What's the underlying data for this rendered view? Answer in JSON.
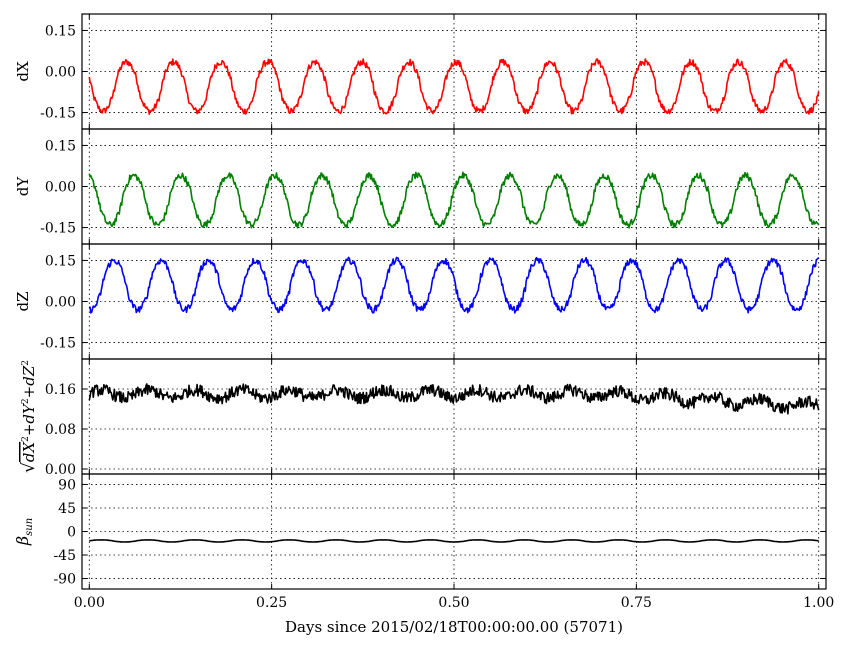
{
  "chart_data": {
    "type": "line",
    "xlabel": "Days since 2015/02/18T00:00:00.00 (57071)",
    "xlim": [
      -0.01,
      1.01
    ],
    "xticks": [
      "0.00",
      "0.25",
      "0.50",
      "0.75",
      "1.00"
    ],
    "panels": [
      {
        "id": "dX",
        "ylabel_parts": [
          "dX"
        ],
        "color": "#ff0000",
        "ylim": [
          -0.21,
          0.21
        ],
        "yticks": [
          "0.15",
          "0.00",
          "-0.15"
        ],
        "ytick_values": [
          0.15,
          0.0,
          -0.15
        ],
        "model": {
          "offset": -0.055,
          "amplitude": 0.09,
          "period_days": 0.0645,
          "phase": 0.035,
          "noise": 0.012
        }
      },
      {
        "id": "dY",
        "ylabel_parts": [
          "dY"
        ],
        "color": "#008000",
        "ylim": [
          -0.21,
          0.21
        ],
        "yticks": [
          "0.15",
          "0.00",
          "-0.15"
        ],
        "ytick_values": [
          0.15,
          0.0,
          -0.15
        ],
        "model": {
          "offset": -0.05,
          "amplitude": 0.09,
          "period_days": 0.0645,
          "phase": 0.045,
          "noise": 0.012
        }
      },
      {
        "id": "dZ",
        "ylabel_parts": [
          "dZ"
        ],
        "color": "#0000ff",
        "ylim": [
          -0.21,
          0.21
        ],
        "yticks": [
          "0.15",
          "0.00",
          "-0.15"
        ],
        "ytick_values": [
          0.15,
          0.0,
          -0.15
        ],
        "model": {
          "offset": 0.06,
          "amplitude": 0.09,
          "period_days": 0.0645,
          "phase": 0.018,
          "noise": 0.012
        }
      },
      {
        "id": "norm",
        "ylabel_parts": [
          "√",
          "dX",
          "2",
          "+dY",
          "2",
          "+dZ",
          "2"
        ],
        "color": "#000000",
        "ylim": [
          -0.01,
          0.22
        ],
        "yticks": [
          "0.16",
          "0.08",
          "0.00"
        ],
        "ytick_values": [
          0.16,
          0.08,
          0.0
        ],
        "model": {
          "offset": 0.15,
          "amplitude": 0.008,
          "period_days": 0.0645,
          "phase": 0.0,
          "noise": 0.012,
          "trend_end": -0.025
        }
      },
      {
        "id": "beta",
        "ylabel_parts": [
          "β",
          "sun"
        ],
        "color": "#000000",
        "ylim": [
          -110,
          110
        ],
        "yticks": [
          "90",
          "45",
          "0",
          "-45",
          "-90"
        ],
        "ytick_values": [
          90,
          45,
          0,
          -45,
          -90
        ],
        "model": {
          "offset": -18,
          "amplitude": 2,
          "period_days": 0.0645,
          "phase": 0.0,
          "noise": 0.0
        }
      }
    ]
  }
}
